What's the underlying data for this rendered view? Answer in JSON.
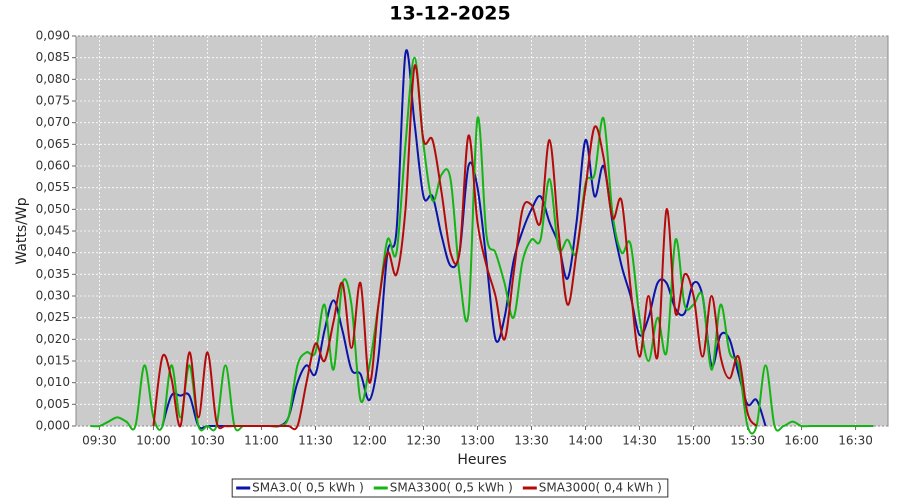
{
  "chart_data": {
    "type": "line",
    "title": "13-12-2025",
    "x_label": "Heures",
    "y_label": "Watts/Wp",
    "x": [
      "09:25",
      "09:30",
      "09:35",
      "09:40",
      "09:45",
      "09:50",
      "09:55",
      "10:00",
      "10:05",
      "10:10",
      "10:15",
      "10:20",
      "10:25",
      "10:30",
      "10:35",
      "10:40",
      "10:45",
      "10:50",
      "10:55",
      "11:00",
      "11:05",
      "11:10",
      "11:15",
      "11:20",
      "11:25",
      "11:30",
      "11:35",
      "11:40",
      "11:45",
      "11:50",
      "11:55",
      "12:00",
      "12:05",
      "12:10",
      "12:15",
      "12:20",
      "12:25",
      "12:30",
      "12:35",
      "12:40",
      "12:45",
      "12:50",
      "12:55",
      "13:00",
      "13:05",
      "13:10",
      "13:15",
      "13:20",
      "13:25",
      "13:30",
      "13:35",
      "13:40",
      "13:45",
      "13:50",
      "13:55",
      "14:00",
      "14:05",
      "14:10",
      "14:15",
      "14:20",
      "14:25",
      "14:30",
      "14:35",
      "14:40",
      "14:45",
      "14:50",
      "14:55",
      "15:00",
      "15:05",
      "15:10",
      "15:15",
      "15:20",
      "15:25",
      "15:30",
      "15:35",
      "15:40",
      "15:45",
      "15:50",
      "15:55",
      "16:00",
      "16:05",
      "16:10",
      "16:15",
      "16:20",
      "16:25",
      "16:30",
      "16:35",
      "16:40"
    ],
    "series": [
      {
        "name": "SMA3.0( 0,5 kWh )",
        "color": "#0a14a8",
        "values": [
          null,
          null,
          null,
          null,
          null,
          null,
          null,
          null,
          0,
          0.007,
          0.007,
          0.007,
          0,
          0,
          0,
          0,
          0,
          0,
          0,
          0,
          0,
          0,
          0.002,
          0.01,
          0.014,
          0.012,
          0.022,
          0.029,
          0.022,
          0.013,
          0.012,
          0.006,
          0.016,
          0.04,
          0.045,
          0.086,
          0.07,
          0.053,
          0.053,
          0.044,
          0.037,
          0.04,
          0.06,
          0.055,
          0.038,
          0.02,
          0.025,
          0.038,
          0.045,
          0.05,
          0.053,
          0.047,
          0.042,
          0.034,
          0.047,
          0.066,
          0.053,
          0.06,
          0.047,
          0.037,
          0.03,
          0.021,
          0.025,
          0.033,
          0.033,
          0.027,
          0.026,
          0.033,
          0.03,
          0.014,
          0.021,
          0.02,
          0.012,
          0.005,
          0.006,
          0,
          null,
          null,
          null,
          null,
          null,
          null,
          null,
          null,
          null,
          null,
          null,
          null
        ]
      },
      {
        "name": "SMA3300( 0,5 kWh )",
        "color": "#14b414",
        "values": [
          0,
          0,
          0.001,
          0.002,
          0.001,
          0,
          0.014,
          0.002,
          0,
          0.014,
          0.002,
          0.014,
          0,
          0,
          0,
          0.014,
          0,
          0,
          0,
          0,
          0,
          0,
          0.002,
          0.014,
          0.017,
          0.017,
          0.028,
          0.013,
          0.033,
          0.028,
          0.006,
          0.014,
          0.028,
          0.043,
          0.04,
          0.065,
          0.085,
          0.065,
          0.052,
          0.058,
          0.057,
          0.035,
          0.026,
          0.071,
          0.044,
          0.04,
          0.033,
          0.025,
          0.038,
          0.043,
          0.043,
          0.057,
          0.041,
          0.043,
          0.04,
          0.056,
          0.058,
          0.071,
          0.049,
          0.04,
          0.042,
          0.025,
          0.015,
          0.025,
          0.017,
          0.043,
          0.028,
          0.028,
          0.03,
          0.013,
          0.028,
          0.017,
          0.014,
          0,
          0,
          0.014,
          0,
          0,
          0.001,
          0,
          0,
          0,
          0,
          0,
          0,
          0,
          0,
          0
        ]
      },
      {
        "name": "SMA3000( 0,4 kWh )",
        "color": "#b40a0a",
        "values": [
          null,
          null,
          null,
          null,
          null,
          null,
          null,
          0,
          0.016,
          0.011,
          0,
          0.017,
          0.002,
          0.017,
          0.001,
          0,
          0,
          0,
          0,
          0,
          0,
          0,
          0,
          0,
          0.01,
          0.019,
          0.015,
          0.024,
          0.033,
          0.018,
          0.033,
          0.01,
          0.028,
          0.04,
          0.035,
          0.05,
          0.083,
          0.066,
          0.066,
          0.054,
          0.04,
          0.04,
          0.067,
          0.047,
          0.037,
          0.03,
          0.02,
          0.035,
          0.05,
          0.051,
          0.047,
          0.066,
          0.045,
          0.028,
          0.04,
          0.055,
          0.069,
          0.062,
          0.048,
          0.052,
          0.032,
          0.016,
          0.03,
          0.016,
          0.05,
          0.026,
          0.035,
          0.03,
          0.016,
          0.03,
          0.016,
          0.011,
          0.016,
          0.003,
          0,
          null,
          null,
          null,
          null,
          null,
          null,
          null,
          null,
          null,
          null,
          null,
          null,
          null
        ]
      }
    ],
    "xlim": [
      "09:17",
      "16:48"
    ],
    "xticks": [
      "09:30",
      "10:00",
      "10:30",
      "11:00",
      "11:30",
      "12:00",
      "12:30",
      "13:00",
      "13:30",
      "14:00",
      "14:30",
      "15:00",
      "15:30",
      "16:00",
      "16:30"
    ],
    "ylim": [
      0,
      0.09
    ],
    "yticks": [
      {
        "value": 0,
        "label": "0,000"
      },
      {
        "value": 0.005,
        "label": "0,005"
      },
      {
        "value": 0.01,
        "label": "0,010"
      },
      {
        "value": 0.015,
        "label": "0,015"
      },
      {
        "value": 0.02,
        "label": "0,020"
      },
      {
        "value": 0.025,
        "label": "0,025"
      },
      {
        "value": 0.03,
        "label": "0,030"
      },
      {
        "value": 0.035,
        "label": "0,035"
      },
      {
        "value": 0.04,
        "label": "0,040"
      },
      {
        "value": 0.045,
        "label": "0,045"
      },
      {
        "value": 0.05,
        "label": "0,050"
      },
      {
        "value": 0.055,
        "label": "0,055"
      },
      {
        "value": 0.06,
        "label": "0,060"
      },
      {
        "value": 0.065,
        "label": "0,065"
      },
      {
        "value": 0.07,
        "label": "0,070"
      },
      {
        "value": 0.075,
        "label": "0,075"
      },
      {
        "value": 0.08,
        "label": "0,080"
      },
      {
        "value": 0.085,
        "label": "0,085"
      },
      {
        "value": 0.09,
        "label": "0,090"
      }
    ],
    "grid": true,
    "legend": "bottom"
  }
}
